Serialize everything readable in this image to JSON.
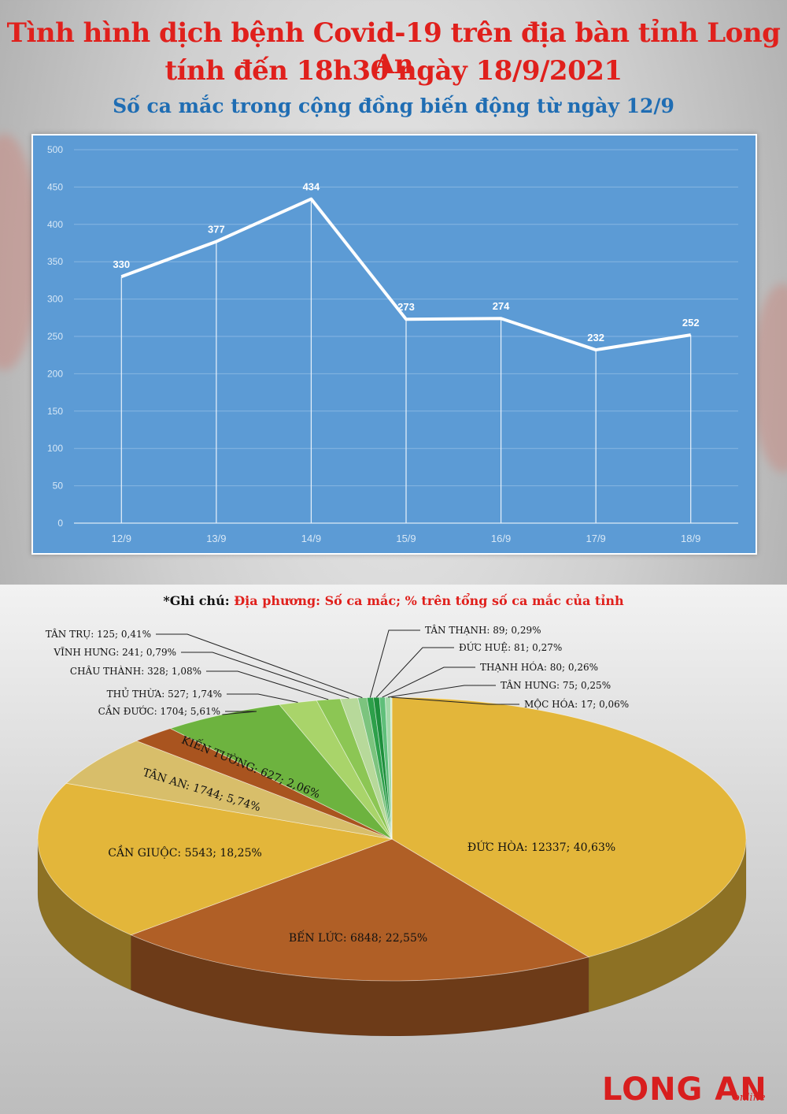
{
  "header": {
    "title_line1": "Tình hình dịch bệnh Covid-19 trên địa bàn tỉnh Long An",
    "title_line2": "tính đến 18h30 ngày 18/9/2021",
    "subtitle": "Số ca mắc trong cộng đồng biến động từ ngày 12/9"
  },
  "note": {
    "key": "*Ghi chú:",
    "value": "Địa phương: Số ca mắc; % trên tổng số ca mắc của tỉnh"
  },
  "brand": {
    "main": "LONG AN",
    "sub": "online"
  },
  "colors": {
    "title": "#e0201c",
    "subtitle": "#1f6db3",
    "line_panel_bg": "#5c9bd5",
    "line": "#ffffff"
  },
  "chart_data": [
    {
      "type": "line",
      "categories": [
        "12/9",
        "13/9",
        "14/9",
        "15/9",
        "16/9",
        "17/9",
        "18/9"
      ],
      "values": [
        330,
        377,
        434,
        273,
        274,
        232,
        252
      ],
      "ylim": [
        0,
        500
      ],
      "yticks": [
        0,
        50,
        100,
        150,
        200,
        250,
        300,
        350,
        400,
        450,
        500
      ],
      "grid": true,
      "data_labels": true,
      "drop_lines": true
    },
    {
      "type": "pie",
      "style": "3d",
      "slices": [
        {
          "label": "ĐỨC HÒA",
          "text": "ĐỨC HÒA: 12337; 40,63%",
          "value": 12337,
          "percent": 40.63,
          "color": "#e3b63a"
        },
        {
          "label": "BẾN LỨC",
          "text": "BẾN LỨC: 6848; 22,55%",
          "value": 6848,
          "percent": 22.55,
          "color": "#b05f26"
        },
        {
          "label": "CẦN GIUỘC",
          "text": "CẦN GIUỘC: 5543; 18,25%",
          "value": 5543,
          "percent": 18.25,
          "color": "#e3b63a"
        },
        {
          "label": "TÂN AN",
          "text": "TÂN AN: 1744; 5,74%",
          "value": 1744,
          "percent": 5.74,
          "color": "#d8be6a"
        },
        {
          "label": "KIẾN TƯỜNG",
          "text": "KIẾN TƯỜNG: 627; 2,06%",
          "value": 627,
          "percent": 2.06,
          "color": "#a9541f"
        },
        {
          "label": "CẦN ĐƯỚC",
          "text": "CẦN ĐƯỚC: 1704; 5,61%",
          "value": 1704,
          "percent": 5.61,
          "color": "#6db33f"
        },
        {
          "label": "THỦ THỪA",
          "text": "THỦ THỪA: 527; 1,74%",
          "value": 527,
          "percent": 1.74,
          "color": "#a9d46a"
        },
        {
          "label": "CHÂU THÀNH",
          "text": "CHÂU THÀNH: 328; 1,08%",
          "value": 328,
          "percent": 1.08,
          "color": "#8cc654"
        },
        {
          "label": "VĨNH HƯNG",
          "text": "VĨNH HƯNG: 241; 0,79%",
          "value": 241,
          "percent": 0.79,
          "color": "#b7d99a"
        },
        {
          "label": "TÂN TRỤ",
          "text": "TÂN TRỤ: 125; 0,41%",
          "value": 125,
          "percent": 0.41,
          "color": "#7cc47e"
        },
        {
          "label": "TÂN THẠNH",
          "text": "TÂN THẠNH: 89; 0,29%",
          "value": 89,
          "percent": 0.29,
          "color": "#2da04a"
        },
        {
          "label": "ĐỨC HUỆ",
          "text": "ĐỨC HUỆ: 81; 0,27%",
          "value": 81,
          "percent": 0.27,
          "color": "#1d8f3c"
        },
        {
          "label": "THẠNH HÓA",
          "text": "THẠNH HÓA: 80; 0,26%",
          "value": 80,
          "percent": 0.26,
          "color": "#5fbf7a"
        },
        {
          "label": "TÂN HƯNG",
          "text": "TÂN HƯNG: 75; 0,25%",
          "value": 75,
          "percent": 0.25,
          "color": "#a3d9a8"
        },
        {
          "label": "MỘC HÓA",
          "text": "MỘC HÓA: 17; 0,06%",
          "value": 17,
          "percent": 0.06,
          "color": "#cfe8c8"
        }
      ]
    }
  ]
}
